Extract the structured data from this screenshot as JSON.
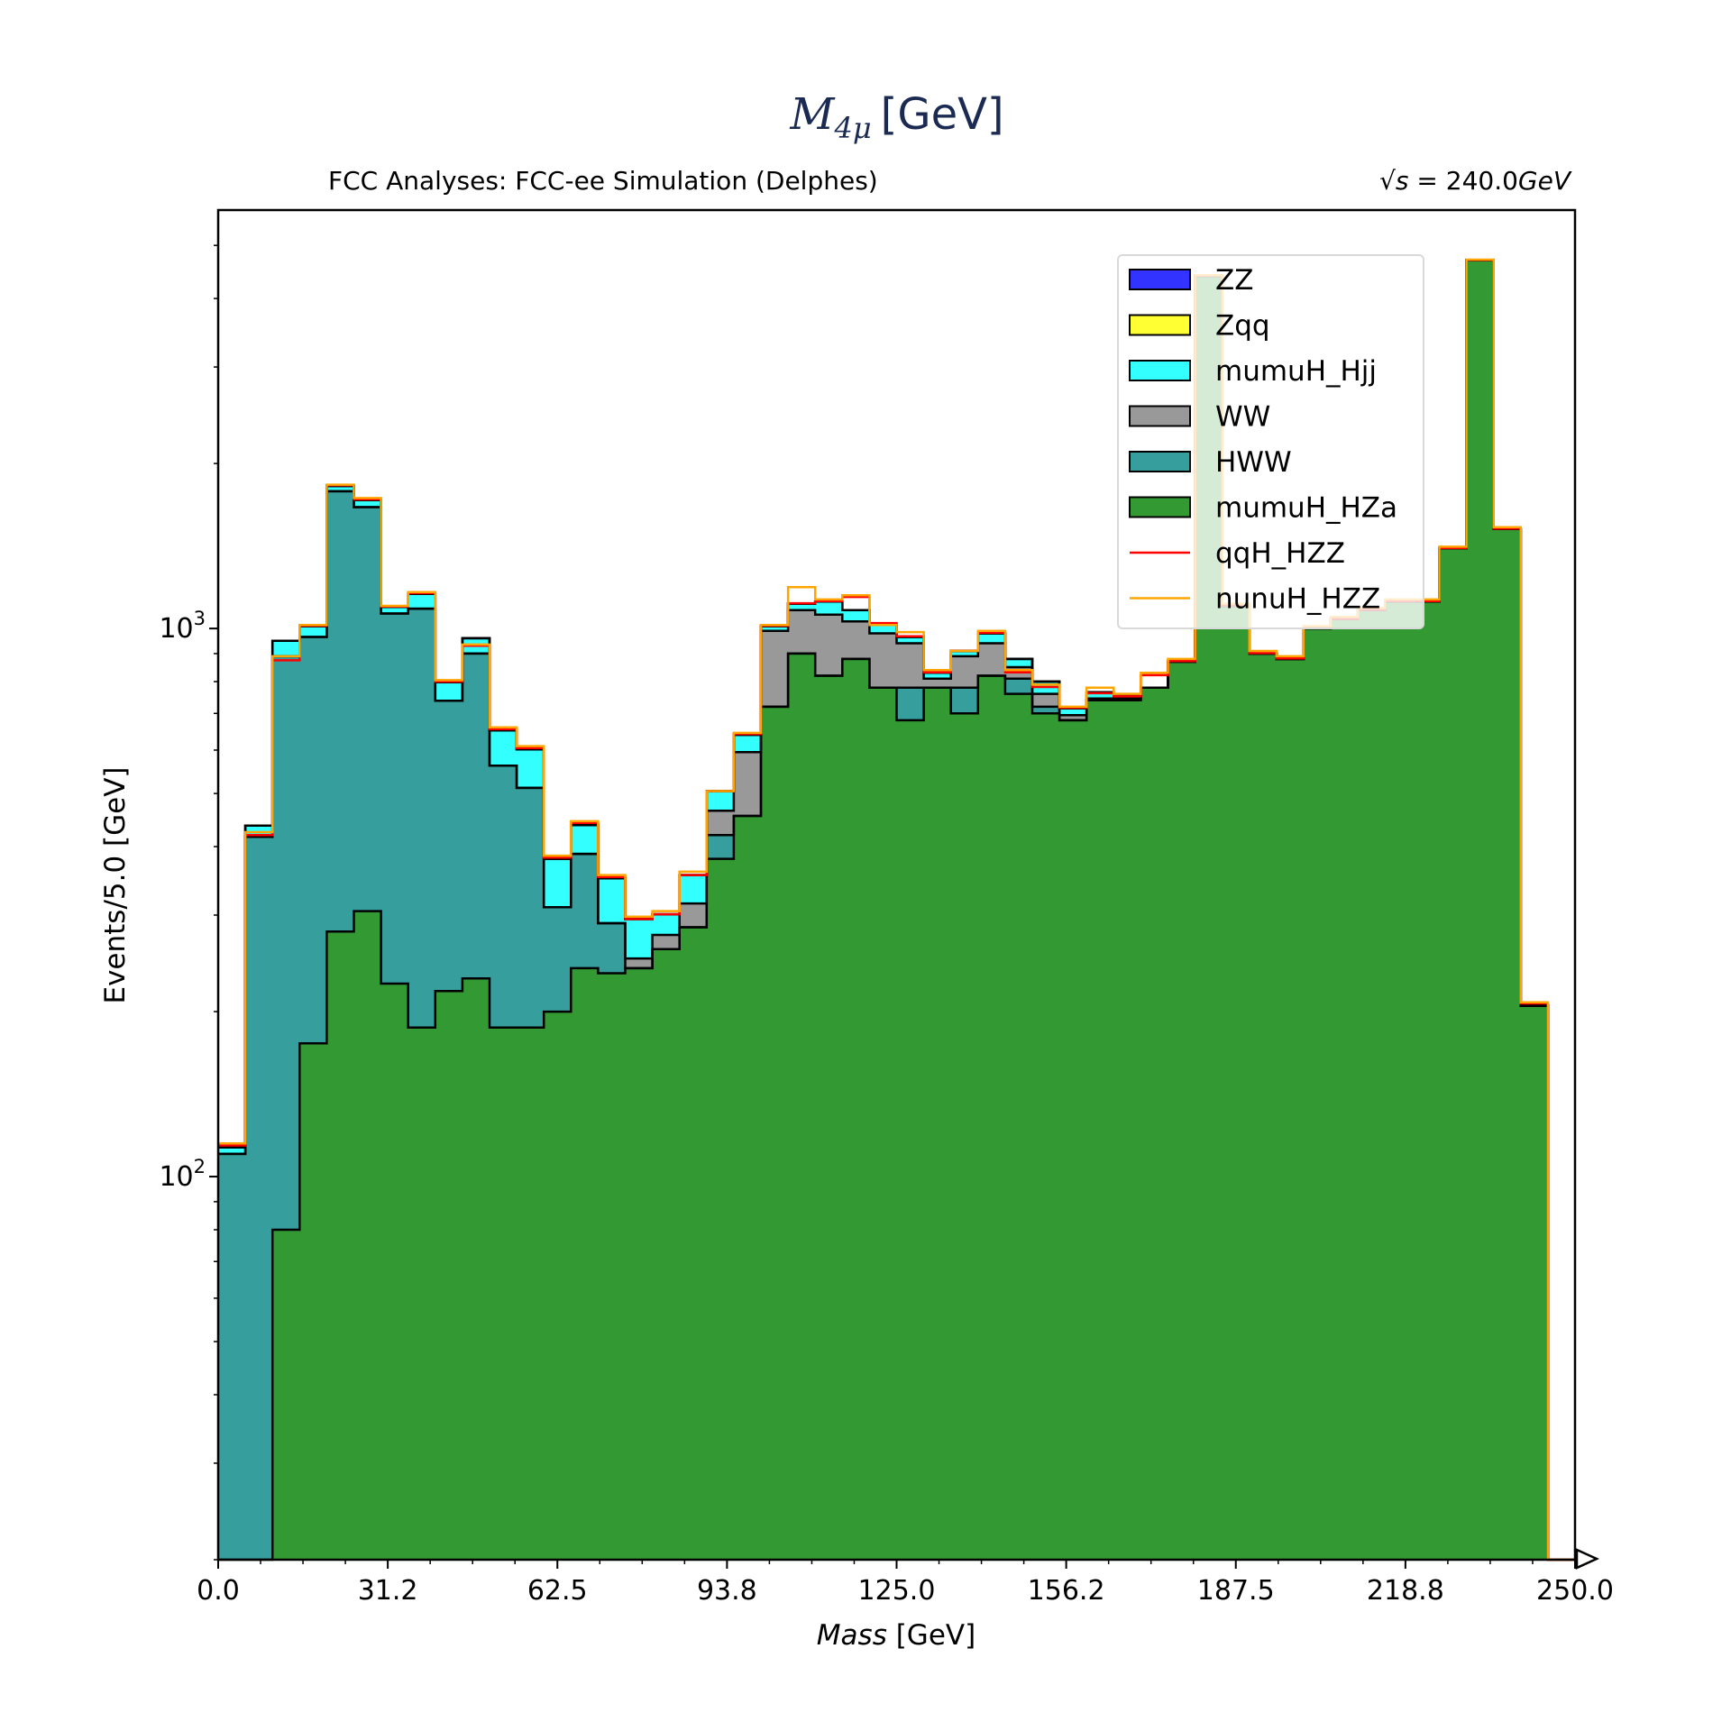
{
  "chart_data": {
    "type": "histogram-stacked",
    "title_main": "M",
    "title_sub": "4μ",
    "title_unit": "[GeV]",
    "subtitle_left": "FCC Analyses: FCC-ee Simulation (Delphes)",
    "subtitle_right_prefix": "√s",
    "subtitle_right_eq": " = 240.0",
    "subtitle_right_unit": "GeV",
    "xlabel_var": "Mass",
    "xlabel_unit": " [GeV]",
    "ylabel": "Events/5.0 [GeV]",
    "xlim": [
      0,
      250
    ],
    "ylim_log": [
      20,
      5800
    ],
    "yscale": "log",
    "bin_width": 5.0,
    "x_ticks": [
      "0.0",
      "31.2",
      "62.5",
      "93.8",
      "125.0",
      "156.2",
      "187.5",
      "218.8",
      "250.0"
    ],
    "y_ticks": [
      {
        "base": "10",
        "exp": "2"
      },
      {
        "base": "10",
        "exp": "3"
      }
    ],
    "legend_position": "upper-right",
    "series": [
      {
        "name": "mumuH_HZa",
        "color": "#339933",
        "values": [
          0,
          17,
          80,
          175,
          280,
          305,
          225,
          187,
          218,
          230,
          187,
          187,
          200,
          240,
          235,
          240,
          260,
          285,
          380,
          455,
          720,
          900,
          820,
          880,
          780,
          680,
          780,
          700,
          820,
          760,
          700,
          680,
          740,
          740,
          780,
          870,
          4400,
          1100,
          900,
          880,
          1000,
          1040,
          1080,
          1120,
          1120,
          1400,
          4700,
          1520,
          205,
          0
        ]
      },
      {
        "name": "HWW",
        "color": "#369e9c",
        "values": [
          110,
          400,
          810,
          790,
          1500,
          1360,
          840,
          900,
          520,
          670,
          375,
          325,
          110,
          148,
          55,
          0,
          0,
          0,
          40,
          0,
          0,
          0,
          0,
          0,
          0,
          100,
          0,
          80,
          0,
          50,
          20,
          0,
          0,
          0,
          0,
          0,
          0,
          0,
          0,
          0,
          0,
          0,
          0,
          0,
          0,
          0,
          0,
          0,
          0,
          0
        ]
      },
      {
        "name": "WW",
        "color": "#999999",
        "values": [
          0,
          0,
          0,
          0,
          0,
          0,
          0,
          0,
          0,
          0,
          0,
          0,
          0,
          0,
          0,
          10,
          16,
          30,
          45,
          140,
          270,
          180,
          240,
          150,
          200,
          160,
          30,
          110,
          120,
          40,
          40,
          15,
          5,
          5,
          0,
          0,
          0,
          0,
          0,
          0,
          0,
          0,
          0,
          0,
          0,
          0,
          0,
          0,
          0,
          0
        ]
      },
      {
        "name": "mumuH_Hjj",
        "color": "#33ffff",
        "values": [
          3,
          20,
          60,
          45,
          40,
          50,
          30,
          70,
          60,
          60,
          90,
          90,
          70,
          50,
          60,
          45,
          25,
          40,
          40,
          45,
          20,
          30,
          60,
          50,
          35,
          25,
          20,
          20,
          40,
          30,
          40,
          20,
          20,
          10,
          0,
          0,
          0,
          0,
          0,
          0,
          0,
          0,
          0,
          0,
          0,
          0,
          0,
          0,
          0,
          0
        ]
      },
      {
        "name": "Zqq",
        "color": "#ffff33",
        "values": [
          0,
          0,
          0,
          0,
          0,
          0,
          0,
          0,
          0,
          0,
          0,
          0,
          0,
          0,
          0,
          0,
          0,
          0,
          0,
          0,
          0,
          0,
          0,
          0,
          0,
          0,
          0,
          0,
          0,
          0,
          0,
          0,
          0,
          0,
          0,
          0,
          0,
          0,
          0,
          0,
          0,
          0,
          0,
          0,
          0,
          0,
          0,
          0,
          0,
          0
        ]
      },
      {
        "name": "ZZ",
        "color": "#3333ff",
        "values": [
          0,
          0,
          0,
          0,
          0,
          0,
          0,
          0,
          0,
          0,
          0,
          0,
          0,
          0,
          0,
          0,
          0,
          0,
          0,
          0,
          0,
          0,
          0,
          0,
          0,
          0,
          0,
          0,
          0,
          0,
          0,
          0,
          0,
          0,
          0,
          0,
          0,
          0,
          0,
          0,
          0,
          0,
          0,
          0,
          0,
          0,
          0,
          0,
          0,
          0
        ]
      }
    ],
    "line_series": [
      {
        "name": "qqH_HZZ",
        "color": "#ff0000",
        "values": [
          114,
          420,
          875,
          1012,
          1825,
          1720,
          1097,
          1160,
          800,
          930,
          655,
          605,
          382,
          442,
          352,
          295,
          301,
          355,
          505,
          642,
          1012,
          1112,
          1122,
          1142,
          1023,
          968,
          832,
          910,
          982,
          832,
          782,
          717,
          762,
          752,
          822,
          872,
          4402,
          1102,
          902,
          882,
          1002,
          1042,
          1082,
          1122,
          1122,
          1402,
          4702,
          1522,
          207,
          0
        ]
      },
      {
        "name": "nunuH_HZZ",
        "color": "#ffa500",
        "values": [
          115,
          425,
          890,
          1015,
          1830,
          1730,
          1100,
          1165,
          805,
          935,
          660,
          610,
          385,
          445,
          355,
          298,
          305,
          360,
          505,
          645,
          1015,
          1190,
          1130,
          1150,
          1015,
          985,
          840,
          910,
          990,
          840,
          790,
          720,
          780,
          760,
          830,
          880,
          4410,
          1110,
          910,
          890,
          1010,
          1050,
          1090,
          1130,
          1130,
          1410,
          4710,
          1530,
          208,
          0
        ]
      }
    ]
  }
}
